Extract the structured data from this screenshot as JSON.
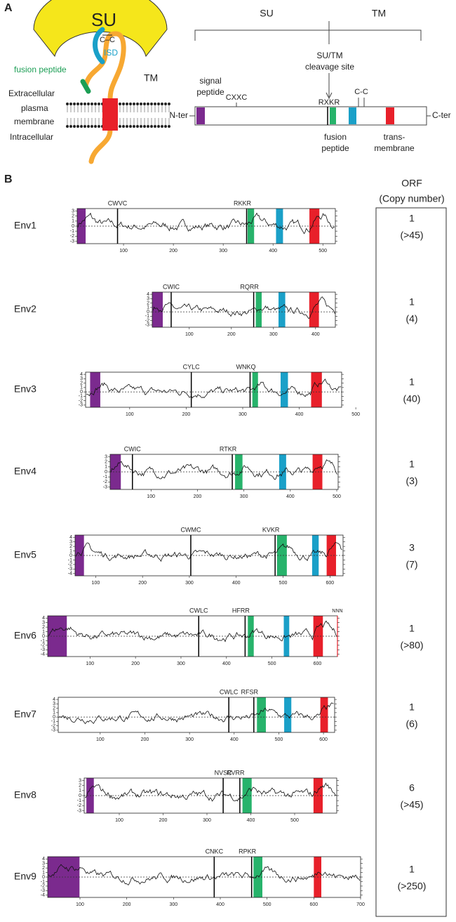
{
  "panel_a": {
    "label": "A",
    "diagram": {
      "su": "SU",
      "cc": "C–C",
      "isd": "ISD",
      "tm": "TM",
      "fusion": "fusion peptide",
      "extracellular": "Extracellular",
      "plasma": "plasma",
      "membrane": "membrane",
      "intracellular": "Intracellular"
    },
    "schematic": {
      "su": "SU",
      "tm": "TM",
      "cleavage": [
        "SU/TM",
        "cleavage site"
      ],
      "signal": [
        "signal",
        "peptide"
      ],
      "cxxc": "CXXC",
      "rxkr": "RXKR",
      "cc": "C-C",
      "nter": "N-ter",
      "cter": "C-ter",
      "fusion": [
        "fusion",
        "peptide"
      ],
      "transmembrane": [
        "trans-",
        "membrane"
      ]
    }
  },
  "panel_b": {
    "label": "B",
    "header": [
      "ORF",
      "(Copy number)"
    ],
    "rows": [
      {
        "name": "Env1",
        "xlim": [
          7,
          525
        ],
        "xticks": [
          100,
          200,
          300,
          400,
          500
        ],
        "ylim": [
          -3.5,
          3.5
        ],
        "yticks": [
          3,
          2,
          1,
          0,
          -1,
          -2,
          -3
        ],
        "signal": [
          7,
          24
        ],
        "fusion": [
          349,
          362
        ],
        "isd": [
          406,
          420
        ],
        "tm": [
          473,
          493
        ],
        "motifs": [
          {
            "label": "CWVC",
            "pos": 88
          },
          {
            "label": "RKKR",
            "pos": 347
          }
        ],
        "orf": 1,
        "copy": "(>45)"
      },
      {
        "name": "Env2",
        "xlim": [
          12,
          447
        ],
        "xticks": [
          100,
          200,
          300,
          400
        ],
        "ylim": [
          -3.5,
          4.5
        ],
        "yticks": [
          4,
          3,
          2,
          1,
          0,
          -1,
          -2,
          -3
        ],
        "signal": [
          12,
          37
        ],
        "fusion": [
          258,
          272
        ],
        "isd": [
          312,
          328
        ],
        "tm": [
          385,
          408
        ],
        "motifs": [
          {
            "label": "CWIC",
            "pos": 57
          },
          {
            "label": "RQRR",
            "pos": 253
          }
        ],
        "orf": 1,
        "copy": "(4)"
      },
      {
        "name": "Env3",
        "xlim": [
          22,
          475
        ],
        "xticks": [
          100,
          200,
          300,
          400,
          500
        ],
        "ylim": [
          -3.5,
          4.5
        ],
        "yticks": [
          4,
          3,
          2,
          1,
          0,
          -1,
          -2,
          -3
        ],
        "signal": [
          30,
          48
        ],
        "fusion": [
          317,
          327
        ],
        "isd": [
          367,
          380
        ],
        "tm": [
          421,
          440
        ],
        "motifs": [
          {
            "label": "CYLC",
            "pos": 209
          },
          {
            "label": "WNKQ",
            "pos": 313
          }
        ],
        "orf": 1,
        "copy": "(40)"
      },
      {
        "name": "Env4",
        "xlim": [
          12,
          503
        ],
        "xticks": [
          100,
          200,
          300,
          400,
          500
        ],
        "ylim": [
          -3.5,
          3.5
        ],
        "yticks": [
          3,
          2,
          1,
          0,
          -1,
          -2,
          -3
        ],
        "signal": [
          12,
          35
        ],
        "fusion": [
          281,
          297
        ],
        "isd": [
          376,
          391
        ],
        "tm": [
          448,
          469
        ],
        "motifs": [
          {
            "label": "CWIC",
            "pos": 60
          },
          {
            "label": "RTKR",
            "pos": 275
          }
        ],
        "orf": 1,
        "copy": "(3)"
      },
      {
        "name": "Env5",
        "xlim": [
          56,
          628
        ],
        "xticks": [
          100,
          200,
          300,
          400,
          500,
          600
        ],
        "ylim": [
          -4.5,
          4.5
        ],
        "yticks": [
          4,
          3,
          2,
          1,
          0,
          -1,
          -2,
          -3,
          -4
        ],
        "signal": [
          56,
          75
        ],
        "fusion": [
          487,
          508
        ],
        "isd": [
          562,
          576
        ],
        "tm": [
          593,
          613
        ],
        "motifs": [
          {
            "label": "CWMC",
            "pos": 303
          },
          {
            "label": "KVKR",
            "pos": 483
          }
        ],
        "orf": 3,
        "copy": "(7)"
      },
      {
        "name": "Env6",
        "xlim": [
          7,
          644
        ],
        "xticks": [
          100,
          200,
          300,
          400,
          500,
          600
        ],
        "ylim": [
          -4.5,
          4.5
        ],
        "yticks": [
          4,
          3,
          2,
          1,
          0,
          -1,
          -2,
          -3,
          -4
        ],
        "signal": [
          7,
          49
        ],
        "fusion": [
          447,
          460
        ],
        "isd": [
          526,
          538
        ],
        "tm": [
          591,
          612
        ],
        "motifs": [
          {
            "label": "CWLC",
            "pos": 339
          },
          {
            "label": "HFRR",
            "pos": 441
          }
        ],
        "end_label": "NNN",
        "orf": 1,
        "copy": "(>80)"
      },
      {
        "name": "Env7",
        "xlim": [
          6,
          625
        ],
        "xticks": [
          100,
          200,
          300,
          400,
          500,
          600
        ],
        "ylim": [
          -3.5,
          4.5
        ],
        "yticks": [
          4,
          3,
          2,
          1,
          0,
          -1,
          -2,
          -3
        ],
        "signal": null,
        "fusion": [
          451,
          471
        ],
        "isd": [
          512,
          528
        ],
        "tm": [
          593,
          610
        ],
        "motifs": [
          {
            "label": "CWLC",
            "pos": 388
          },
          {
            "label": "RFSR",
            "pos": 444
          }
        ],
        "orf": 1,
        "copy": "(6)"
      },
      {
        "name": "Env8",
        "xlim": [
          20,
          596
        ],
        "xticks": [
          100,
          200,
          300,
          400,
          500
        ],
        "ylim": [
          -3.5,
          3.5
        ],
        "yticks": [
          3,
          2,
          1,
          0,
          -1,
          -2,
          -3
        ],
        "signal": [
          25,
          42
        ],
        "fusion": [
          381,
          402
        ],
        "isd": null,
        "tm": [
          543,
          564
        ],
        "motifs": [
          {
            "label": "NVSC",
            "pos": 337
          },
          {
            "label": "RVRR",
            "pos": 375
          }
        ],
        "orf": 6,
        "copy": "(>45)"
      },
      {
        "name": "Env9",
        "xlim": [
          31,
          700
        ],
        "xticks": [
          100,
          200,
          300,
          400,
          500,
          600,
          700
        ],
        "ylim": [
          -4.5,
          4.5
        ],
        "yticks": [
          4,
          3,
          2,
          1,
          0,
          -1,
          -2,
          -3,
          -4
        ],
        "signal": [
          31,
          99
        ],
        "fusion": [
          471,
          490
        ],
        "isd": null,
        "tm": [
          600,
          616
        ],
        "motifs": [
          {
            "label": "CNKC",
            "pos": 387
          },
          {
            "label": "RPKR",
            "pos": 467
          }
        ],
        "orf": 1,
        "copy": "(>250)"
      }
    ]
  }
}
